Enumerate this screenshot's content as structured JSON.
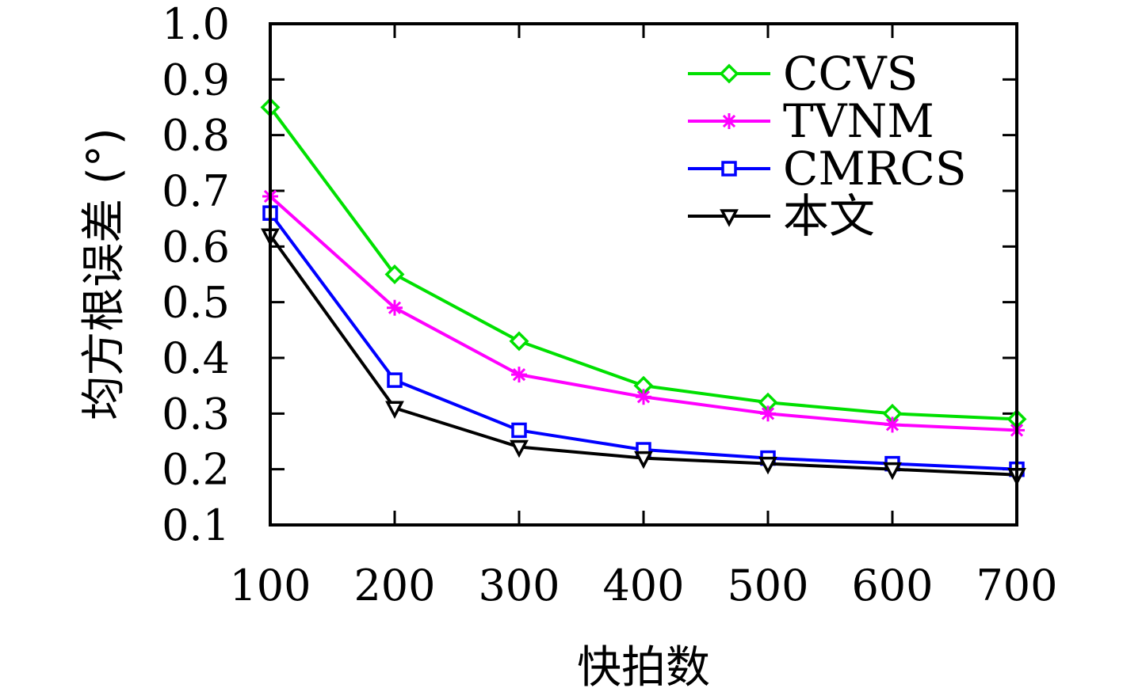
{
  "chart_data": {
    "type": "line",
    "xlabel": "快拍数",
    "ylabel": "均方根误差 (°)",
    "x": [
      100,
      200,
      300,
      400,
      500,
      600,
      700
    ],
    "xlim": [
      100,
      700
    ],
    "ylim": [
      0.1,
      1.0
    ],
    "xticks": [
      "100",
      "200",
      "300",
      "400",
      "500",
      "600",
      "700"
    ],
    "yticks": [
      "0.1",
      "0.2",
      "0.3",
      "0.4",
      "0.5",
      "0.6",
      "0.7",
      "0.8",
      "0.9",
      "1.0"
    ],
    "grid": false,
    "legend_position": "top-right",
    "series": [
      {
        "name": "CCVS",
        "color": "#00e000",
        "marker": "diamond",
        "values": [
          0.85,
          0.55,
          0.43,
          0.35,
          0.32,
          0.3,
          0.29
        ]
      },
      {
        "name": "TVNM",
        "color": "#ff00ff",
        "marker": "asterisk",
        "values": [
          0.69,
          0.49,
          0.37,
          0.33,
          0.3,
          0.28,
          0.27
        ]
      },
      {
        "name": "CMRCS",
        "color": "#0000ff",
        "marker": "square",
        "values": [
          0.66,
          0.36,
          0.27,
          0.235,
          0.22,
          0.21,
          0.2
        ]
      },
      {
        "name": "本文",
        "color": "#000000",
        "marker": "triangle-down",
        "values": [
          0.62,
          0.31,
          0.24,
          0.22,
          0.21,
          0.2,
          0.19
        ]
      }
    ]
  }
}
